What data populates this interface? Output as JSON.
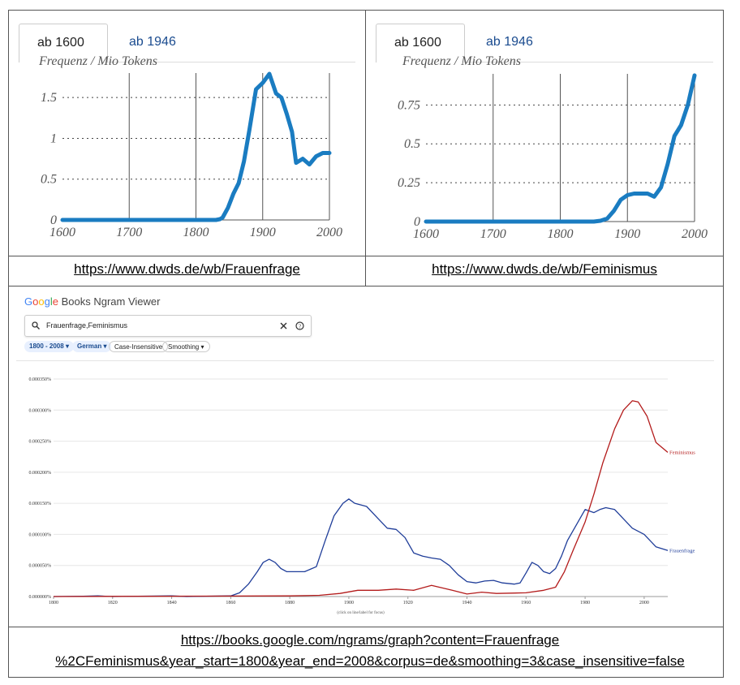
{
  "panels": [
    {
      "tabs": [
        {
          "label": "ab 1600",
          "active": true
        },
        {
          "label": "ab 1946",
          "active": false
        }
      ],
      "link": "https://www.dwds.de/wb/Frauenfrage"
    },
    {
      "tabs": [
        {
          "label": "ab 1600",
          "active": true
        },
        {
          "label": "ab 1946",
          "active": false
        }
      ],
      "link": "https://www.dwds.de/wb/Feminismus"
    }
  ],
  "ngram": {
    "brand_google": [
      "G",
      "o",
      "o",
      "g",
      "l",
      "e"
    ],
    "brand_google_colors": [
      "#4285f4",
      "#ea4335",
      "#fbbc05",
      "#4285f4",
      "#34a853",
      "#ea4335"
    ],
    "brand_rest": "Books Ngram Viewer",
    "search_value": "Frauenfrage,Feminismus",
    "chips": [
      "1800 - 2008",
      "German",
      "Case-Insensitive",
      "Smoothing"
    ],
    "hint": "(click on line/label for focus)",
    "link_line1": "https://books.google.com/ngrams/graph?content=Frauenfrage",
    "link_line2": "%2CFeminismus&year_start=1800&year_end=2008&corpus=de&smoothing=3&case_insensitive=false"
  },
  "chart_data": [
    {
      "type": "line",
      "title": "",
      "ylabel": "Frequenz / Mio Tokens",
      "xlabel": "",
      "xlim": [
        1600,
        2000
      ],
      "ylim": [
        0,
        1.8
      ],
      "xticks": [
        "1600",
        "1700",
        "1800",
        "1900",
        "2000"
      ],
      "yticks": [
        "0",
        "0.5",
        "1",
        "1.5"
      ],
      "ytick_values": [
        0,
        0.5,
        1,
        1.5
      ],
      "grid": "horizontal dotted, vertical solid",
      "color": "#1a7cc1",
      "series": [
        {
          "x": [
            1600,
            1830,
            1836,
            1840,
            1848,
            1856,
            1864,
            1872,
            1880,
            1890,
            1900,
            1910,
            1920,
            1928,
            1936,
            1944,
            1950,
            1960,
            1970,
            1980,
            1990,
            2000
          ],
          "y": [
            0,
            0,
            0.01,
            0.03,
            0.15,
            0.32,
            0.45,
            0.72,
            1.1,
            1.6,
            1.68,
            1.79,
            1.55,
            1.5,
            1.3,
            1.08,
            0.7,
            0.75,
            0.68,
            0.78,
            0.82,
            0.82
          ]
        }
      ]
    },
    {
      "type": "line",
      "title": "",
      "ylabel": "Frequenz / Mio Tokens",
      "xlabel": "",
      "xlim": [
        1600,
        2000
      ],
      "ylim": [
        0,
        0.95
      ],
      "xticks": [
        "1600",
        "1700",
        "1800",
        "1900",
        "2000"
      ],
      "yticks": [
        "0",
        "0.25",
        "0.5",
        "0.75"
      ],
      "ytick_values": [
        0,
        0.25,
        0.5,
        0.75
      ],
      "grid": "horizontal dotted, vertical solid",
      "color": "#1a7cc1",
      "series": [
        {
          "x": [
            1600,
            1850,
            1860,
            1870,
            1880,
            1890,
            1900,
            1910,
            1920,
            1930,
            1940,
            1950,
            1960,
            1970,
            1980,
            1990,
            2000
          ],
          "y": [
            0,
            0,
            0.005,
            0.02,
            0.07,
            0.14,
            0.17,
            0.18,
            0.18,
            0.18,
            0.16,
            0.22,
            0.37,
            0.55,
            0.62,
            0.75,
            0.94
          ]
        }
      ]
    },
    {
      "type": "line",
      "title": "",
      "xlabel": "",
      "ylabel": "",
      "xlim": [
        1800,
        2008
      ],
      "ylim": [
        0,
        0.00035
      ],
      "xticks": [
        "1800",
        "1820",
        "1840",
        "1860",
        "1880",
        "1900",
        "1920",
        "1940",
        "1960",
        "1980",
        "2000"
      ],
      "yticks": [
        "0.000000%",
        "0.000050%",
        "0.000100%",
        "0.000150%",
        "0.000200%",
        "0.000250%",
        "0.000300%",
        "0.000350%"
      ],
      "ytick_values": [
        0,
        5e-05,
        0.0001,
        0.00015,
        0.0002,
        0.00025,
        0.0003,
        0.00035
      ],
      "grid": "horizontal",
      "series": [
        {
          "name": "Frauenfrage",
          "color": "#1f3d99",
          "x": [
            1800,
            1810,
            1815,
            1820,
            1840,
            1845,
            1860,
            1863,
            1866,
            1869,
            1871,
            1873,
            1875,
            1877,
            1879,
            1882,
            1885,
            1889,
            1892,
            1895,
            1898,
            1900,
            1902,
            1906,
            1910,
            1913,
            1916,
            1919,
            1922,
            1925,
            1928,
            1931,
            1934,
            1937,
            1940,
            1943,
            1946,
            1949,
            1952,
            1956,
            1958,
            1960,
            1962,
            1964,
            1966,
            1968,
            1970,
            1972,
            1974,
            1977,
            1980,
            1983,
            1985,
            1987,
            1990,
            1993,
            1996,
            2000,
            2004,
            2008
          ],
          "y": [
            0,
            5e-07,
            1e-06,
            0,
            1e-06,
            0,
            1e-06,
            6e-06,
            2e-05,
            4e-05,
            5.5e-05,
            6e-05,
            5.5e-05,
            4.5e-05,
            4e-05,
            4e-05,
            4e-05,
            4.8e-05,
            9e-05,
            0.00013,
            0.00015,
            0.000157,
            0.00015,
            0.000145,
            0.000125,
            0.00011,
            0.000108,
            9.5e-05,
            7e-05,
            6.5e-05,
            6.2e-05,
            6e-05,
            5e-05,
            3.5e-05,
            2.4e-05,
            2.2e-05,
            2.5e-05,
            2.6e-05,
            2.2e-05,
            2e-05,
            2.2e-05,
            3.8e-05,
            5.5e-05,
            5e-05,
            4e-05,
            3.7e-05,
            4.5e-05,
            6.5e-05,
            9e-05,
            0.000115,
            0.00014,
            0.000135,
            0.00014,
            0.000143,
            0.00014,
            0.000125,
            0.00011,
            0.0001,
            8e-05,
            7.4e-05
          ]
        },
        {
          "name": "Feminismus",
          "color": "#b31b1b",
          "x": [
            1800,
            1880,
            1890,
            1897,
            1903,
            1910,
            1916,
            1922,
            1928,
            1935,
            1940,
            1945,
            1950,
            1960,
            1966,
            1970,
            1973,
            1976,
            1980,
            1983,
            1986,
            1990,
            1993,
            1996,
            1998,
            2001,
            2004,
            2006,
            2008
          ],
          "y": [
            0,
            1e-06,
            2e-06,
            5e-06,
            1e-05,
            1e-05,
            1.2e-05,
            1e-05,
            1.8e-05,
            1e-05,
            4e-06,
            7e-06,
            5e-06,
            6e-06,
            1e-05,
            1.5e-05,
            4e-05,
            7.5e-05,
            0.00012,
            0.000165,
            0.000215,
            0.00027,
            0.0003,
            0.000315,
            0.000313,
            0.00029,
            0.000248,
            0.00024,
            0.000232
          ]
        }
      ]
    }
  ]
}
